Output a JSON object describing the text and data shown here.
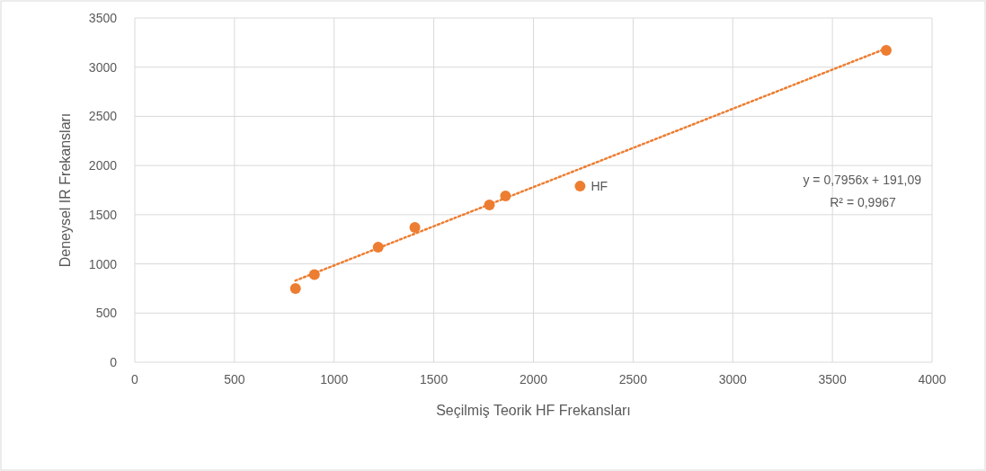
{
  "chart_data": {
    "type": "scatter",
    "xlabel": "Seçilmiş Teorik HF Frekansları",
    "ylabel": "Deneysel IR Frekansları",
    "xlim": [
      0,
      4000
    ],
    "xticks": [
      0,
      500,
      1000,
      1500,
      2000,
      2500,
      3000,
      3500,
      4000
    ],
    "ylim": [
      0,
      3500
    ],
    "yticks": [
      0,
      500,
      1000,
      1500,
      2000,
      2500,
      3000,
      3500
    ],
    "grid": true,
    "marker": "circle",
    "series": [
      {
        "color": "#ed7d31",
        "x": [
          806,
          901,
          1221,
          1405,
          1779,
          1860,
          2234,
          3770
        ],
        "values": [
          750,
          890,
          1170,
          1370,
          1600,
          1690,
          1790,
          3170
        ]
      },
      {
        "type": "line",
        "color": "#ed7d31",
        "line_style": "dotted",
        "marker": "none",
        "x": [
          806,
          3770
        ],
        "values": [
          830,
          3190
        ]
      }
    ],
    "annotations": [
      {
        "text": "HF",
        "x": 2234,
        "y": 1790
      },
      "y = 0,7956x + 191,09",
      "R² = 0,9967"
    ]
  }
}
